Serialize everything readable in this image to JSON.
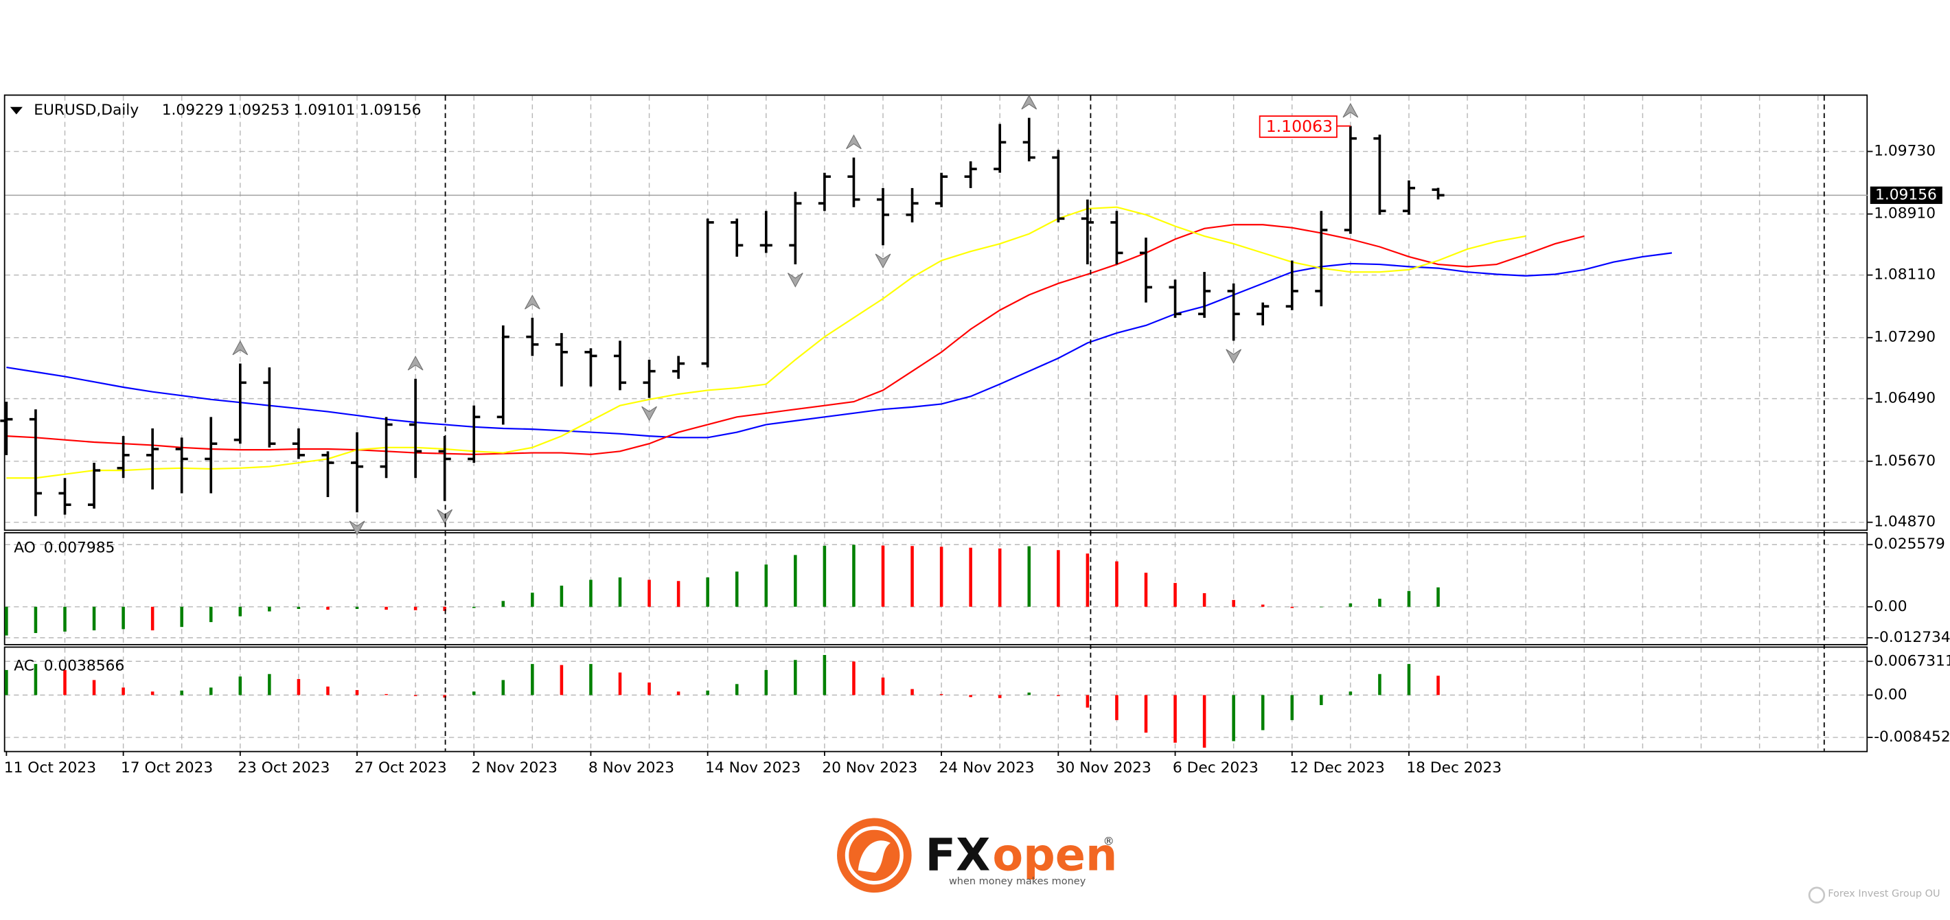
{
  "chart_data": {
    "type": "ohlc",
    "title": "EURUSD,Daily",
    "categories": [
      "11 Oct 2023",
      null,
      null,
      null,
      "17 Oct 2023",
      null,
      null,
      null,
      "23 Oct 2023",
      null,
      null,
      null,
      "27 Oct 2023",
      null,
      null,
      null,
      "2 Nov 2023",
      null,
      null,
      null,
      "8 Nov 2023",
      null,
      null,
      null,
      "14 Nov 2023",
      null,
      null,
      null,
      "20 Nov 2023",
      null,
      null,
      null,
      "24 Nov 2023",
      null,
      null,
      null,
      "30 Nov 2023",
      null,
      null,
      null,
      "6 Dec 2023",
      null,
      null,
      null,
      "12 Dec 2023",
      null,
      null,
      null,
      "18 Dec 2023",
      null,
      null,
      null,
      null,
      null,
      null,
      null,
      null,
      null
    ],
    "open": [
      1.062,
      1.0622,
      1.0525,
      1.051,
      1.0558,
      1.0575,
      1.0583,
      1.057,
      1.0595,
      1.067,
      1.059,
      1.0575,
      1.0565,
      1.056,
      1.0615,
      1.058,
      1.057,
      1.0625,
      1.073,
      1.072,
      1.071,
      1.0705,
      1.067,
      1.0685,
      1.0695,
      1.088,
      1.085,
      1.085,
      1.0905,
      1.094,
      1.091,
      1.089,
      1.0905,
      1.094,
      1.095,
      1.0985,
      1.0965,
      1.0885,
      1.088,
      1.084,
      1.0795,
      1.076,
      1.079,
      1.076,
      1.077,
      1.079,
      1.087,
      1.099,
      1.0895,
      1.09229,
      null,
      null,
      null,
      null,
      null,
      null,
      null,
      null
    ],
    "high": [
      1.0645,
      1.0635,
      1.0545,
      1.0565,
      1.06,
      1.061,
      1.0598,
      1.0625,
      1.0695,
      1.069,
      1.061,
      1.058,
      1.0605,
      1.0625,
      1.0675,
      1.06,
      1.064,
      1.0745,
      1.0755,
      1.0735,
      1.0715,
      1.0725,
      1.07,
      1.0705,
      1.0885,
      1.0885,
      1.0895,
      1.092,
      1.0945,
      1.0965,
      1.0925,
      1.0925,
      1.0945,
      1.096,
      1.1009,
      1.1017,
      1.0975,
      1.091,
      1.0895,
      1.086,
      1.0805,
      1.0815,
      1.08,
      1.0775,
      1.083,
      1.0895,
      1.10063,
      1.0995,
      1.0935,
      1.09253,
      null,
      null,
      null,
      null,
      null,
      null,
      null,
      null
    ],
    "low": [
      1.0575,
      1.0495,
      1.0497,
      1.0505,
      1.0545,
      1.053,
      1.0525,
      1.0525,
      1.059,
      1.0585,
      1.057,
      1.052,
      1.05,
      1.0545,
      1.0545,
      1.0515,
      1.0565,
      1.0615,
      1.0705,
      1.0665,
      1.0665,
      1.066,
      1.065,
      1.0675,
      1.069,
      1.0835,
      1.084,
      1.0825,
      1.0895,
      1.09,
      1.085,
      1.088,
      1.09,
      1.0925,
      1.0945,
      1.096,
      1.088,
      1.0825,
      1.0825,
      1.0775,
      1.0755,
      1.0755,
      1.0725,
      1.0745,
      1.0765,
      1.077,
      1.0865,
      1.089,
      1.089,
      1.09101,
      null,
      null,
      null,
      null,
      null,
      null,
      null,
      null
    ],
    "close": [
      1.0622,
      1.0525,
      1.051,
      1.0555,
      1.0575,
      1.0583,
      1.057,
      1.059,
      1.067,
      1.059,
      1.0575,
      1.0565,
      1.056,
      1.0615,
      1.058,
      1.057,
      1.0625,
      1.073,
      1.072,
      1.071,
      1.0705,
      1.067,
      1.0685,
      1.0695,
      1.088,
      1.085,
      1.085,
      1.0905,
      1.094,
      1.091,
      1.089,
      1.0905,
      1.094,
      1.095,
      1.0985,
      1.0965,
      1.0885,
      1.088,
      1.084,
      1.0795,
      1.076,
      1.079,
      1.076,
      1.077,
      1.079,
      1.087,
      1.099,
      1.0895,
      1.0925,
      1.09156,
      null,
      null,
      null,
      null,
      null,
      null,
      null,
      null
    ],
    "color": "#000000",
    "ylim": [
      1.0479,
      1.1046
    ],
    "yticks": [
      {
        "value": 1.0487,
        "label": "1.04870"
      },
      {
        "value": 1.0567,
        "label": "1.05670"
      },
      {
        "value": 1.0649,
        "label": "1.06490"
      },
      {
        "value": 1.0729,
        "label": "1.07290"
      },
      {
        "value": 1.0811,
        "label": "1.08110"
      },
      {
        "value": 1.0891,
        "label": "1.08910"
      },
      {
        "value": 1.0973,
        "label": "1.09730"
      }
    ],
    "grid": true,
    "series": [
      {
        "color": "#0000ff",
        "values": [
          1.069,
          1.0684,
          1.0678,
          1.0671,
          1.0664,
          1.0658,
          1.0653,
          1.0648,
          1.0644,
          1.064,
          1.0636,
          1.0632,
          1.0627,
          1.0622,
          1.0618,
          1.0615,
          1.0612,
          1.061,
          1.0609,
          1.0607,
          1.0605,
          1.0603,
          1.06,
          1.0598,
          1.0598,
          1.0605,
          1.0615,
          1.062,
          1.0625,
          1.063,
          1.0635,
          1.0638,
          1.0642,
          1.0652,
          1.0668,
          1.0685,
          1.0702,
          1.0722,
          1.0735,
          1.0745,
          1.076,
          1.077,
          1.0785,
          1.08,
          1.0815,
          1.0822,
          1.0826,
          1.0825,
          1.0822,
          1.082,
          1.0815,
          1.0812,
          1.081,
          1.0812,
          1.0818,
          1.0828,
          1.0835,
          1.084
        ]
      },
      {
        "color": "#ff0000",
        "values": [
          1.06,
          1.0598,
          1.0595,
          1.0592,
          1.059,
          1.0588,
          1.0585,
          1.0583,
          1.0582,
          1.0582,
          1.0583,
          1.0583,
          1.0582,
          1.058,
          1.0578,
          1.0577,
          1.0576,
          1.0577,
          1.0578,
          1.0578,
          1.0576,
          1.058,
          1.059,
          1.0605,
          1.0615,
          1.0625,
          1.063,
          1.0635,
          1.064,
          1.0645,
          1.066,
          1.0685,
          1.071,
          1.074,
          1.0765,
          1.0785,
          1.08,
          1.0812,
          1.0825,
          1.084,
          1.0858,
          1.0872,
          1.0877,
          1.0877,
          1.0873,
          1.0866,
          1.0858,
          1.0848,
          1.0835,
          1.0825,
          1.0822,
          1.0825,
          1.0838,
          1.0852,
          1.0862,
          null,
          null,
          null
        ]
      },
      {
        "color": "#ffff00",
        "values": [
          1.0545,
          1.0545,
          1.055,
          1.0555,
          1.0555,
          1.0557,
          1.0558,
          1.0557,
          1.0558,
          1.056,
          1.0565,
          1.057,
          1.0582,
          1.0585,
          1.0585,
          1.0583,
          1.058,
          1.0578,
          1.0585,
          1.06,
          1.062,
          1.064,
          1.0648,
          1.0655,
          1.066,
          1.0663,
          1.0668,
          1.07,
          1.073,
          1.0755,
          1.078,
          1.0808,
          1.083,
          1.0842,
          1.0852,
          1.0865,
          1.0885,
          1.0898,
          1.09,
          1.089,
          1.0875,
          1.0862,
          1.0852,
          1.084,
          1.0828,
          1.082,
          1.0815,
          1.0815,
          1.0818,
          1.083,
          1.0845,
          1.0855,
          1.0862,
          null,
          null,
          null,
          null,
          null
        ]
      }
    ],
    "annotations": [
      {
        "label": "1.10063",
        "value": 1.10063,
        "color": "#ff0000"
      }
    ],
    "ao": {
      "type": "bar",
      "label": "AO",
      "up_color": "#008000",
      "down_color": "#ff0000",
      "values": [
        -0.0118,
        -0.0108,
        -0.0102,
        -0.0097,
        -0.0092,
        -0.0097,
        -0.0083,
        -0.0063,
        -0.0039,
        -0.0019,
        -0.0009,
        -0.0012,
        -0.0009,
        -0.0012,
        -0.0014,
        -0.0017,
        -0.0005,
        0.0024,
        0.0058,
        0.0087,
        0.0111,
        0.0121,
        0.0111,
        0.0106,
        0.0121,
        0.0145,
        0.0174,
        0.0213,
        0.0251,
        0.0255,
        0.0252,
        0.025,
        0.0247,
        0.0243,
        0.024,
        0.0249,
        0.0233,
        0.0219,
        0.0187,
        0.014,
        0.0098,
        0.0056,
        0.0028,
        0.0009,
        -0.0005,
        -0.0002,
        0.0014,
        0.0033,
        0.0065,
        0.007985,
        null,
        null,
        null,
        null,
        null,
        null,
        null,
        null
      ],
      "ylim": [
        -0.0148,
        0.0297
      ],
      "yticks": [
        0.025579,
        {
          "value": 0,
          "label": "0.00"
        },
        -0.012734
      ]
    },
    "ac": {
      "type": "bar",
      "label": "AC",
      "up_color": "#008000",
      "down_color": "#ff0000",
      "values": [
        0.005,
        0.0062,
        0.005,
        0.003,
        0.0015,
        0.0007,
        0.0009,
        0.0015,
        0.0037,
        0.0042,
        0.0032,
        0.0017,
        0.001,
        0.0002,
        -0.0002,
        -0.0005,
        0.0007,
        0.003,
        0.0062,
        0.006,
        0.0062,
        0.0045,
        0.0025,
        0.0007,
        0.0009,
        0.0022,
        0.005,
        0.007,
        0.008,
        0.0067,
        0.0035,
        0.0012,
        0.0002,
        -0.0004,
        -0.0006,
        0.0005,
        -0.0002,
        -0.0025,
        -0.005,
        -0.0075,
        -0.0095,
        -0.0105,
        -0.0092,
        -0.007,
        -0.005,
        -0.002,
        0.0007,
        0.0042,
        0.0062,
        0.0038566,
        null,
        null,
        null,
        null,
        null,
        null,
        null,
        null
      ],
      "ylim": [
        -0.0109,
        0.0092
      ],
      "yticks": [
        0.0067311,
        {
          "value": 0,
          "label": "0.00"
        },
        -0.008452
      ]
    }
  },
  "branding": {
    "logo_left": "FX",
    "logo_right": "open",
    "registered": "®",
    "tagline": "when money makes money",
    "company": "Forex Invest Group OU"
  }
}
